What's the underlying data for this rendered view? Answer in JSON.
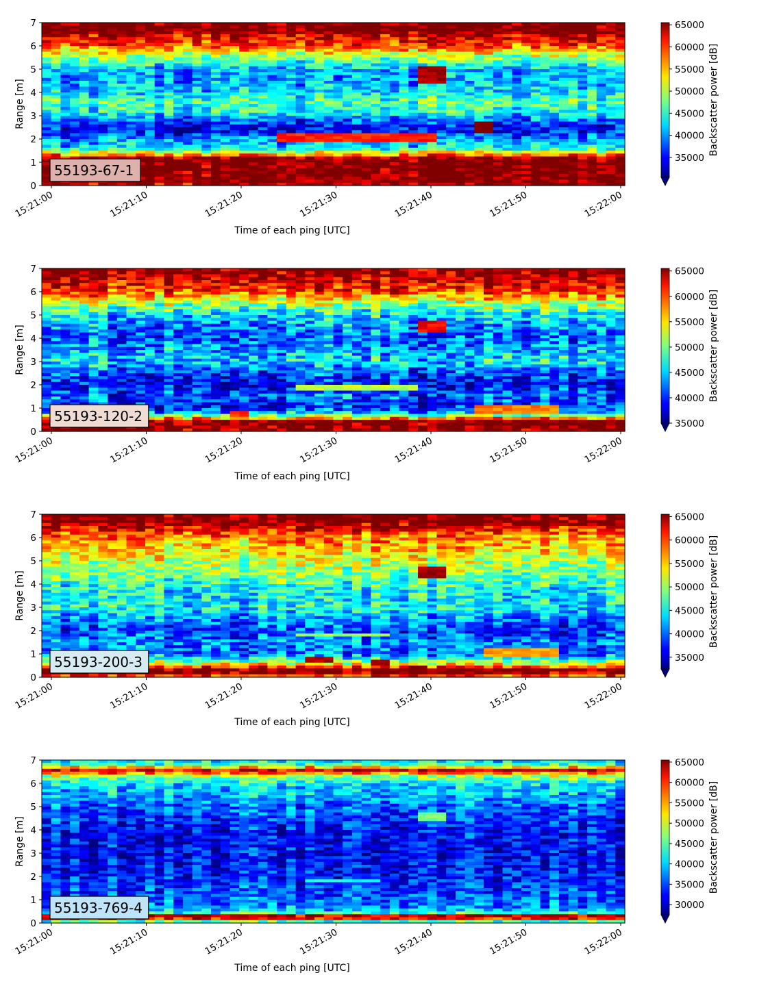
{
  "chart_data": [
    {
      "type": "heatmap",
      "label": "55193-67-1",
      "label_bg": "#deb1ad",
      "xlabel": "Time of each ping [UTC]",
      "ylabel": "Range [m]",
      "x_ticks": [
        "15:21:00",
        "15:21:10",
        "15:21:20",
        "15:21:30",
        "15:21:40",
        "15:21:50",
        "15:22:00"
      ],
      "y_ticks": [
        0,
        1,
        2,
        3,
        4,
        5,
        6,
        7
      ],
      "ylim": [
        0,
        7
      ],
      "colorbar_label": "Backscatter power [dB]",
      "colorbar_ticks": [
        35000,
        40000,
        45000,
        50000,
        55000,
        60000,
        65000
      ],
      "colorbar_range": [
        30500,
        65500
      ],
      "colormap": "jet",
      "profile": [
        [
          0,
          63000
        ],
        [
          0.3,
          66000
        ],
        [
          1.15,
          66000
        ],
        [
          1.25,
          60000
        ],
        [
          1.4,
          52000
        ],
        [
          1.6,
          43000
        ],
        [
          1.8,
          41000
        ],
        [
          2.0,
          40000
        ],
        [
          2.2,
          36000
        ],
        [
          2.5,
          34000
        ],
        [
          2.8,
          38000
        ],
        [
          3.2,
          44000
        ],
        [
          3.6,
          46000
        ],
        [
          4.0,
          42000
        ],
        [
          4.5,
          40000
        ],
        [
          5.0,
          41000
        ],
        [
          5.5,
          48000
        ],
        [
          6.0,
          58000
        ],
        [
          6.5,
          63000
        ],
        [
          6.6,
          66000
        ],
        [
          7.0,
          66000
        ]
      ],
      "features": [
        {
          "t0": 24,
          "t1": 41,
          "r0": 1.9,
          "r1": 2.3,
          "v": 60000
        },
        {
          "t0": 39,
          "t1": 42,
          "r0": 4.4,
          "r1": 5.1,
          "v": 64000
        },
        {
          "t0": 45,
          "t1": 46.5,
          "r0": 2.3,
          "r1": 2.8,
          "v": 66000
        }
      ]
    },
    {
      "type": "heatmap",
      "label": "55193-120-2",
      "label_bg": "#f0dcd2",
      "xlabel": "Time of each ping [UTC]",
      "ylabel": "Range [m]",
      "x_ticks": [
        "15:21:00",
        "15:21:10",
        "15:21:20",
        "15:21:30",
        "15:21:40",
        "15:21:50",
        "15:22:00"
      ],
      "y_ticks": [
        0,
        1,
        2,
        3,
        4,
        5,
        6,
        7
      ],
      "ylim": [
        0,
        7
      ],
      "colorbar_label": "Backscatter power [dB]",
      "colorbar_ticks": [
        35000,
        40000,
        45000,
        50000,
        55000,
        60000,
        65000
      ],
      "colorbar_range": [
        35000,
        65500
      ],
      "colormap": "jet",
      "profile": [
        [
          0,
          66000
        ],
        [
          0.45,
          66000
        ],
        [
          0.6,
          55000
        ],
        [
          0.8,
          45000
        ],
        [
          1.0,
          40000
        ],
        [
          1.5,
          42000
        ],
        [
          2.0,
          39000
        ],
        [
          2.5,
          41000
        ],
        [
          3.0,
          46000
        ],
        [
          3.5,
          44000
        ],
        [
          4.0,
          42000
        ],
        [
          4.5,
          43000
        ],
        [
          5.0,
          46000
        ],
        [
          5.5,
          52000
        ],
        [
          6.0,
          60000
        ],
        [
          6.5,
          64000
        ],
        [
          7.0,
          66000
        ]
      ],
      "features": [
        {
          "t0": 26,
          "t1": 39,
          "r0": 1.7,
          "r1": 2.0,
          "v": 52000
        },
        {
          "t0": 39,
          "t1": 42,
          "r0": 4.2,
          "r1": 4.8,
          "v": 62000
        },
        {
          "t0": 45,
          "t1": 53,
          "r0": 0.7,
          "r1": 1.1,
          "v": 58000
        },
        {
          "t0": 19,
          "t1": 21,
          "r0": 0.6,
          "r1": 0.9,
          "v": 60000
        }
      ]
    },
    {
      "type": "heatmap",
      "label": "55193-200-3",
      "label_bg": "#d7ecf2",
      "xlabel": "Time of each ping [UTC]",
      "ylabel": "Range [m]",
      "x_ticks": [
        "15:21:00",
        "15:21:10",
        "15:21:20",
        "15:21:30",
        "15:21:40",
        "15:21:50",
        "15:22:00"
      ],
      "y_ticks": [
        0,
        1,
        2,
        3,
        4,
        5,
        6,
        7
      ],
      "ylim": [
        0,
        7
      ],
      "colorbar_label": "Backscatter power [dB]",
      "colorbar_ticks": [
        35000,
        40000,
        45000,
        50000,
        55000,
        60000,
        65000
      ],
      "colorbar_range": [
        32500,
        65500
      ],
      "colormap": "jet",
      "profile": [
        [
          0,
          55000
        ],
        [
          0.2,
          66000
        ],
        [
          0.35,
          66000
        ],
        [
          0.5,
          55000
        ],
        [
          0.8,
          45000
        ],
        [
          1.0,
          40000
        ],
        [
          1.5,
          41000
        ],
        [
          2.0,
          38000
        ],
        [
          2.5,
          41000
        ],
        [
          3.0,
          45000
        ],
        [
          3.5,
          44000
        ],
        [
          4.0,
          46000
        ],
        [
          4.5,
          49000
        ],
        [
          5.0,
          51000
        ],
        [
          5.5,
          54000
        ],
        [
          6.0,
          57000
        ],
        [
          6.5,
          63000
        ],
        [
          6.7,
          66000
        ],
        [
          7.0,
          66000
        ]
      ],
      "features": [
        {
          "t0": 27,
          "t1": 30,
          "r0": 0.6,
          "r1": 0.9,
          "v": 64000
        },
        {
          "t0": 34,
          "t1": 36,
          "r0": 0.5,
          "r1": 0.8,
          "v": 64000
        },
        {
          "t0": 39,
          "t1": 42,
          "r0": 4.2,
          "r1": 4.8,
          "v": 64000
        },
        {
          "t0": 46,
          "t1": 53,
          "r0": 0.9,
          "r1": 1.2,
          "v": 56000
        },
        {
          "t0": 26,
          "t1": 36,
          "r0": 1.7,
          "r1": 1.9,
          "v": 50000
        }
      ]
    },
    {
      "type": "heatmap",
      "label": "55193-769-4",
      "label_bg": "#bde4f8",
      "xlabel": "Time of each ping [UTC]",
      "ylabel": "Range [m]",
      "x_ticks": [
        "15:21:00",
        "15:21:10",
        "15:21:20",
        "15:21:30",
        "15:21:40",
        "15:21:50",
        "15:22:00"
      ],
      "y_ticks": [
        0,
        1,
        2,
        3,
        4,
        5,
        6,
        7
      ],
      "ylim": [
        0,
        7
      ],
      "colorbar_label": "Backscatter power [dB]",
      "colorbar_ticks": [
        30000,
        35000,
        40000,
        45000,
        50000,
        55000,
        60000,
        65000
      ],
      "colorbar_range": [
        27500,
        65500
      ],
      "colormap": "jet",
      "profile": [
        [
          0,
          36000
        ],
        [
          0.2,
          62000
        ],
        [
          0.3,
          66000
        ],
        [
          0.4,
          45000
        ],
        [
          0.6,
          38000
        ],
        [
          1.0,
          36000
        ],
        [
          2.0,
          33000
        ],
        [
          3.0,
          32000
        ],
        [
          4.0,
          33000
        ],
        [
          5.0,
          36000
        ],
        [
          5.5,
          39000
        ],
        [
          6.0,
          41000
        ],
        [
          6.4,
          50000
        ],
        [
          6.5,
          66000
        ],
        [
          6.6,
          60000
        ],
        [
          6.8,
          44000
        ],
        [
          7.0,
          41000
        ]
      ],
      "features": [
        {
          "t0": 39,
          "t1": 41.5,
          "r0": 4.4,
          "r1": 4.8,
          "v": 46000
        },
        {
          "t0": 27,
          "t1": 35,
          "r0": 1.75,
          "r1": 1.9,
          "v": 42000
        }
      ]
    }
  ]
}
